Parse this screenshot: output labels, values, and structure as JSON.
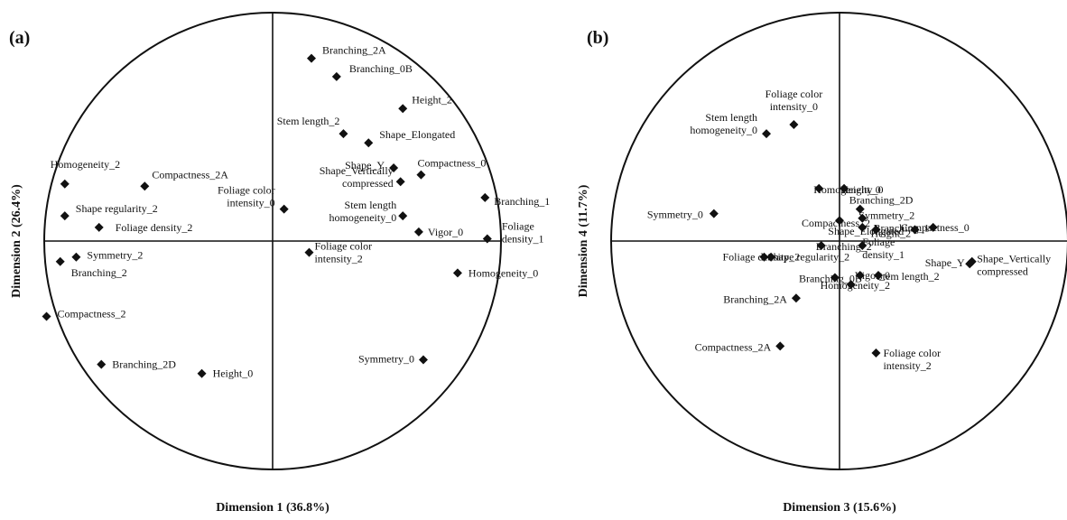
{
  "chart_data": [
    {
      "type": "scatter",
      "panel_label": "(a)",
      "xlabel": "Dimension 1 (36.8%)",
      "ylabel": "Dimension 2 (26.4%)",
      "xlim": [
        -1,
        1
      ],
      "ylim": [
        -1,
        1
      ],
      "unit_circle": true,
      "points": [
        {
          "label": "Branching_2A",
          "x": 0.17,
          "y": 0.8
        },
        {
          "label": "Branching_0B",
          "x": 0.28,
          "y": 0.72
        },
        {
          "label": "Height_2",
          "x": 0.57,
          "y": 0.58
        },
        {
          "label": "Stem length_2",
          "x": 0.31,
          "y": 0.47
        },
        {
          "label": "Shape_Elongated",
          "x": 0.42,
          "y": 0.43
        },
        {
          "label": "Shape_Y",
          "x": 0.53,
          "y": 0.32
        },
        {
          "label": "Compactness_0",
          "x": 0.65,
          "y": 0.29
        },
        {
          "label": "Shape_Vertically compressed",
          "x": 0.56,
          "y": 0.26
        },
        {
          "label": "Branching_1",
          "x": 0.93,
          "y": 0.19
        },
        {
          "label": "Foliage color intensity_0",
          "x": 0.05,
          "y": 0.14
        },
        {
          "label": "Stem length homogeneity_0",
          "x": 0.57,
          "y": 0.11
        },
        {
          "label": "Vigor_0",
          "x": 0.64,
          "y": 0.04
        },
        {
          "label": "Foliage density_1",
          "x": 0.94,
          "y": 0.01
        },
        {
          "label": "Foliage color intensity_2",
          "x": 0.16,
          "y": -0.05
        },
        {
          "label": "Homogeneity_0",
          "x": 0.81,
          "y": -0.14
        },
        {
          "label": "Symmetry_0",
          "x": 0.66,
          "y": -0.52
        },
        {
          "label": "Homogeneity_2",
          "x": -0.91,
          "y": 0.25
        },
        {
          "label": "Compactness_2A",
          "x": -0.56,
          "y": 0.24
        },
        {
          "label": "Shape regularity_2",
          "x": -0.91,
          "y": 0.11
        },
        {
          "label": "Foliage density_2",
          "x": -0.76,
          "y": 0.06
        },
        {
          "label": "Symmetry_2",
          "x": -0.86,
          "y": -0.07
        },
        {
          "label": "Branching_2",
          "x": -0.93,
          "y": -0.09
        },
        {
          "label": "Compactness_2",
          "x": -0.99,
          "y": -0.33
        },
        {
          "label": "Branching_2D",
          "x": -0.75,
          "y": -0.54
        },
        {
          "label": "Height_0",
          "x": -0.31,
          "y": -0.58
        }
      ]
    },
    {
      "type": "scatter",
      "panel_label": "(b)",
      "xlabel": "Dimension 3 (15.6%)",
      "ylabel": "Dimension 4 (11.7%)",
      "xlim": [
        -1,
        1
      ],
      "ylim": [
        -1,
        1
      ],
      "unit_circle": true,
      "points": [
        {
          "label": "Foliage color intensity_0",
          "x": -0.2,
          "y": 0.51
        },
        {
          "label": "Stem length homogeneity_0",
          "x": -0.32,
          "y": 0.47
        },
        {
          "label": "Homogeneity_0",
          "x": -0.09,
          "y": 0.23
        },
        {
          "label": "Height_0",
          "x": 0.02,
          "y": 0.23
        },
        {
          "label": "Symmetry_0",
          "x": -0.55,
          "y": 0.12
        },
        {
          "label": "Branching_2D",
          "x": 0.09,
          "y": 0.14
        },
        {
          "label": "Compactness_2",
          "x": 0.0,
          "y": 0.09
        },
        {
          "label": "Symmetry_2",
          "x": 0.1,
          "y": 0.1
        },
        {
          "label": "Shape_Elongated",
          "x": 0.1,
          "y": 0.06
        },
        {
          "label": "Height_2",
          "x": 0.16,
          "y": 0.05
        },
        {
          "label": "Branching_1",
          "x": 0.33,
          "y": 0.05
        },
        {
          "label": "Compactness_0",
          "x": 0.41,
          "y": 0.06
        },
        {
          "label": "Branching_2",
          "x": -0.08,
          "y": -0.02
        },
        {
          "label": "Foliage density_1",
          "x": 0.1,
          "y": -0.02
        },
        {
          "label": "Foliage density_2",
          "x": -0.33,
          "y": -0.07
        },
        {
          "label": "Shape regularity_2",
          "x": -0.3,
          "y": -0.07
        },
        {
          "label": "Shape_Vertically compressed",
          "x": 0.57,
          "y": -0.1
        },
        {
          "label": "Shape_Y",
          "x": 0.58,
          "y": -0.09
        },
        {
          "label": "Branching_0B",
          "x": -0.02,
          "y": -0.16
        },
        {
          "label": "Vigor_0",
          "x": 0.09,
          "y": -0.15
        },
        {
          "label": "Stem length_2",
          "x": 0.17,
          "y": -0.15
        },
        {
          "label": "Homogeneity_2",
          "x": 0.05,
          "y": -0.19
        },
        {
          "label": "Branching_2A",
          "x": -0.19,
          "y": -0.25
        },
        {
          "label": "Compactness_2A",
          "x": -0.26,
          "y": -0.46
        },
        {
          "label": "Foliage color intensity_2",
          "x": 0.16,
          "y": -0.49
        }
      ]
    }
  ]
}
